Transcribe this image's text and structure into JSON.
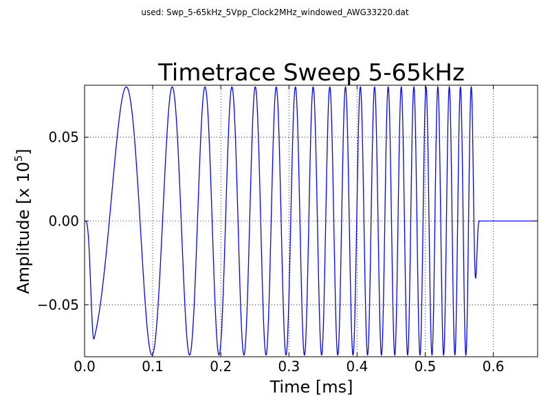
{
  "figure": {
    "suptitle": "used: Swp_5-65kHz_5Vpp_Clock2MHz_windowed_AWG33220.dat"
  },
  "chart_data": {
    "type": "line",
    "title": "Timetrace Sweep 5-65kHz",
    "xlabel": "Time [ms]",
    "ylabel_main": "Amplitude [x 10",
    "ylabel_exponent": "5",
    "ylabel_close": "]",
    "xlim": [
      0.0,
      0.665
    ],
    "ylim": [
      -0.081,
      0.081
    ],
    "xticks": [
      0.0,
      0.1,
      0.2,
      0.3,
      0.4,
      0.5,
      0.6
    ],
    "xtick_labels": [
      "0.0",
      "0.1",
      "0.2",
      "0.3",
      "0.4",
      "0.5",
      "0.6"
    ],
    "yticks": [
      -0.05,
      0.0,
      0.05
    ],
    "ytick_labels": [
      "−0.05",
      "0.00",
      "0.05"
    ],
    "grid": true,
    "color": "#0000ff",
    "series": [
      {
        "sweep_start_khz": 5,
        "sweep_end_khz": 65,
        "sweep_duration_ms": 0.58,
        "amplitude": 0.08,
        "trailing_zero_until_ms": 0.665,
        "note_shape": "windowed linear chirp starting with rounded onset, ending with partial dip near -0.058, then flat at 0"
      }
    ]
  }
}
